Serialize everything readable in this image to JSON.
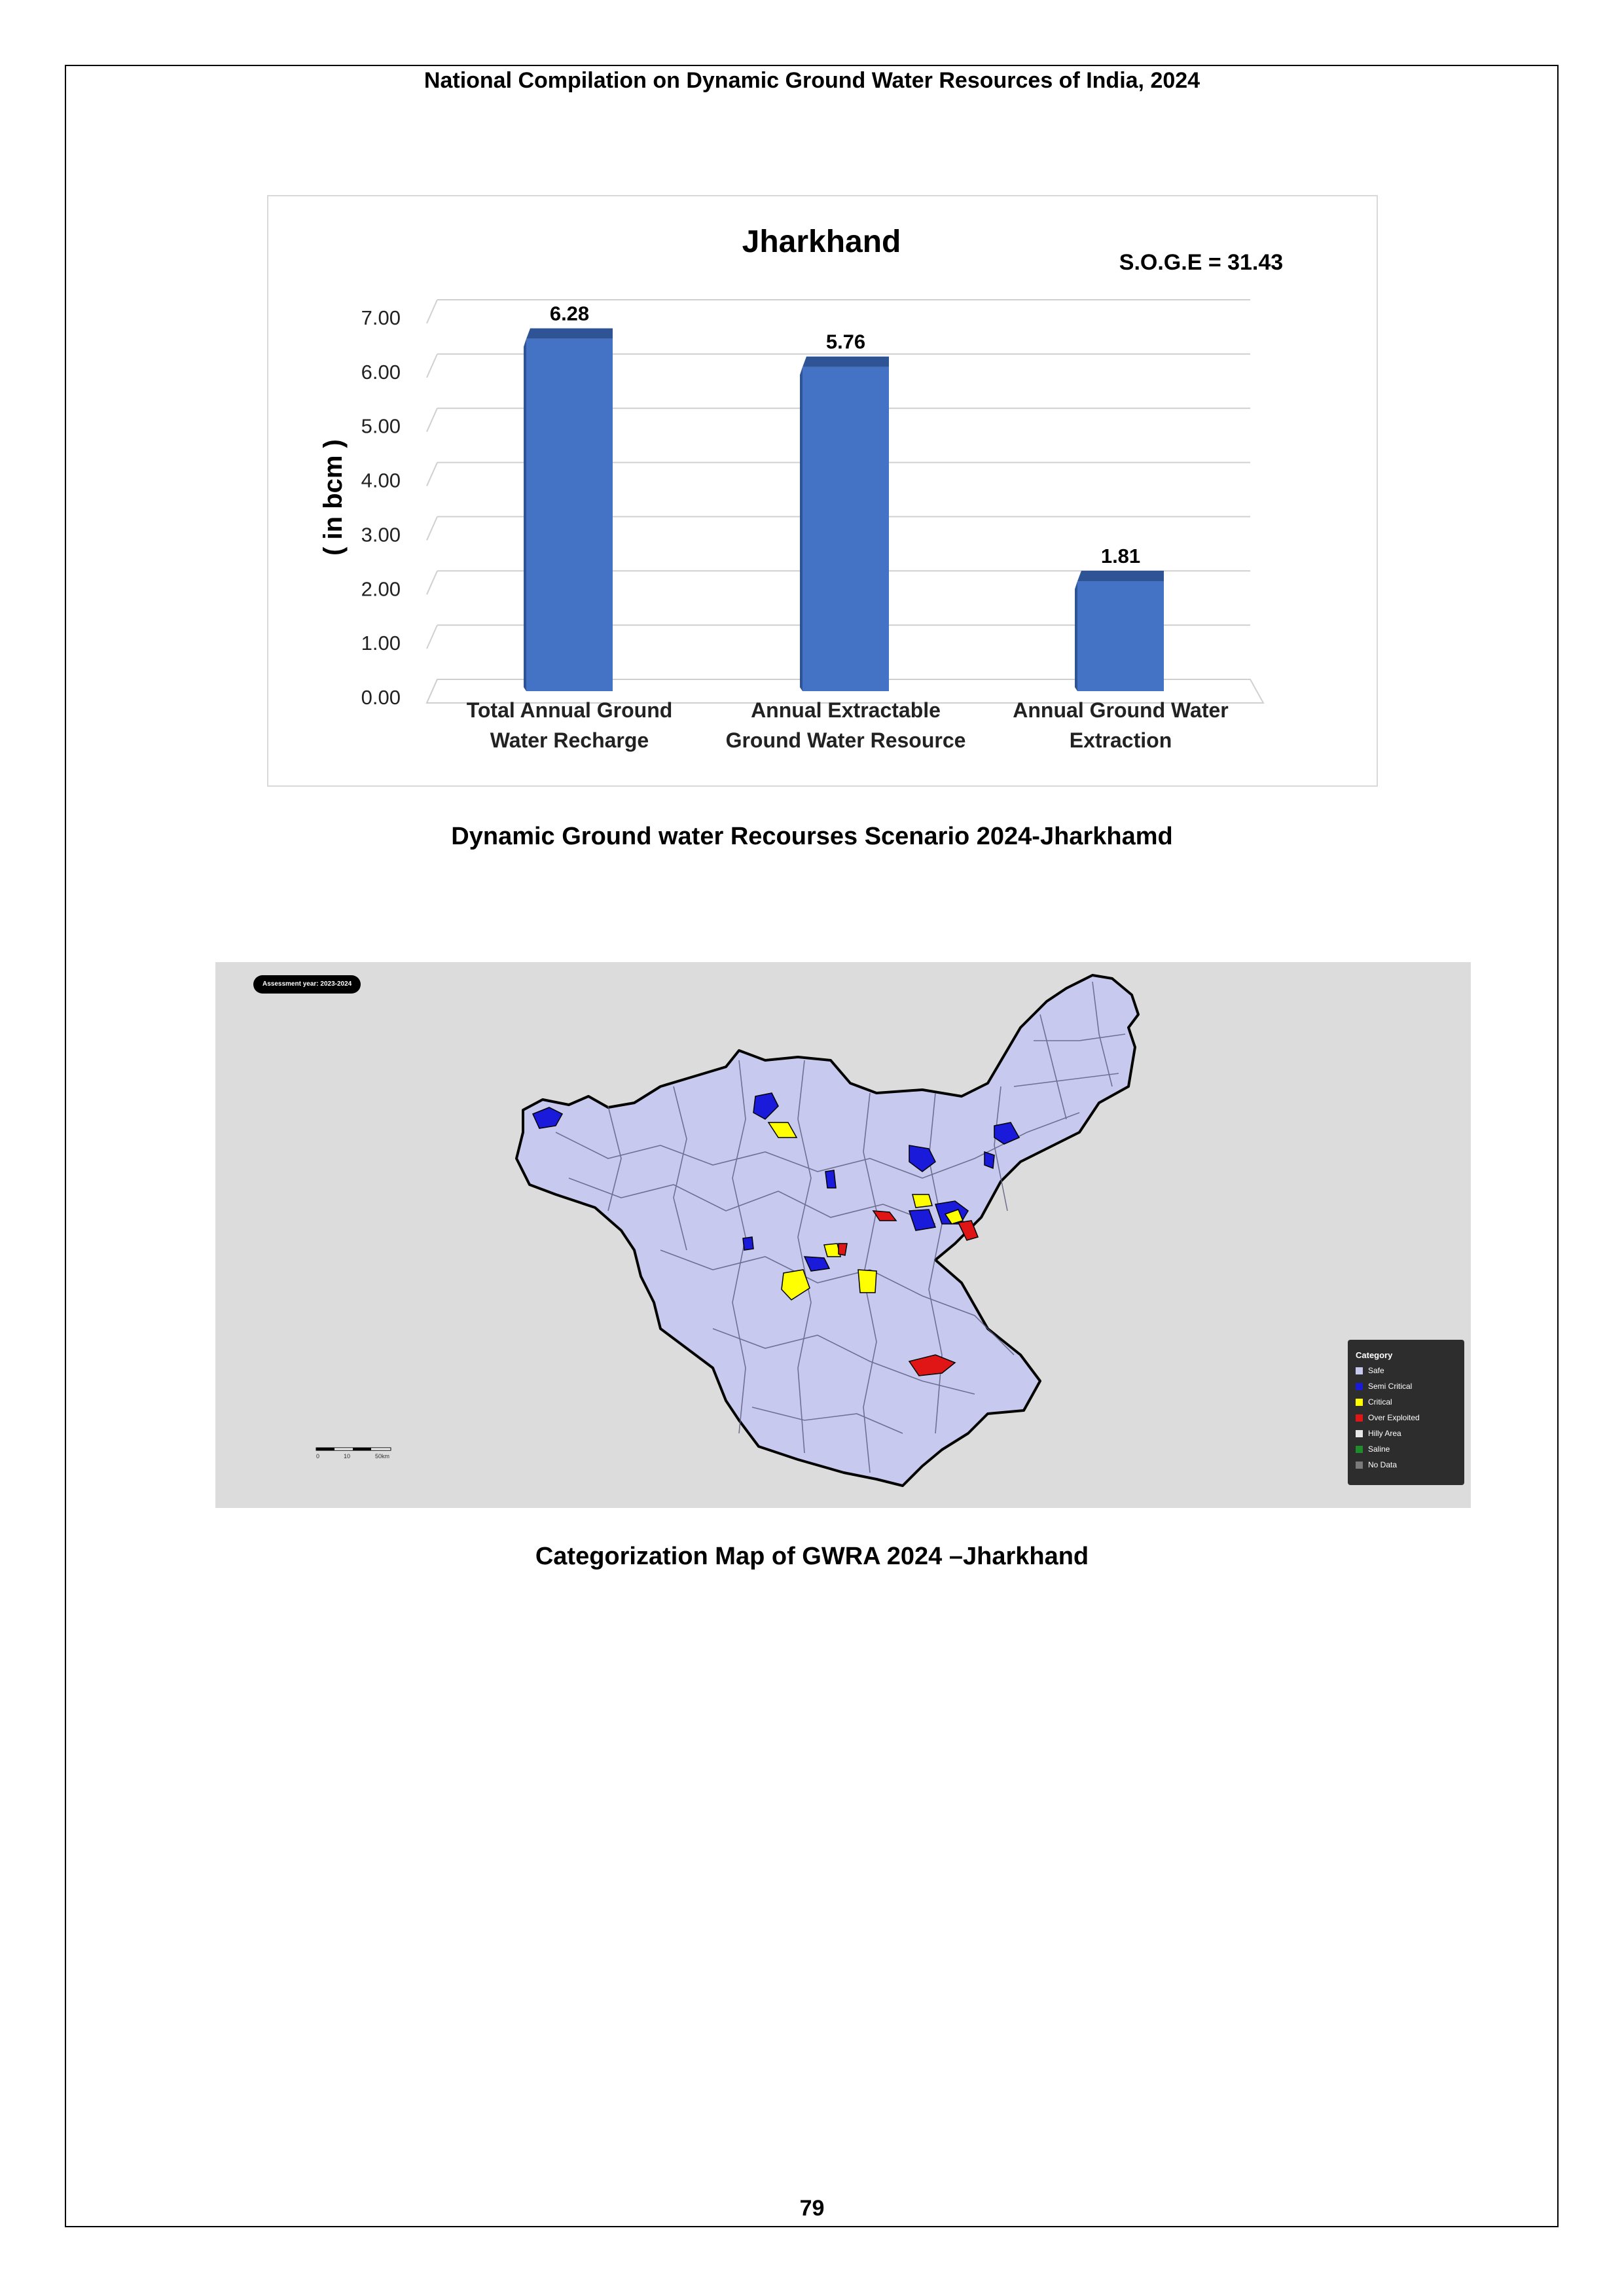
{
  "header": {
    "title": "National Compilation on Dynamic Ground Water Resources of India, 2024"
  },
  "chart_data": {
    "type": "bar",
    "title": "Jharkhand",
    "annotation": "S.O.G.E = 31.43",
    "ylabel": "( in bcm )",
    "xlabel": "",
    "ylim": [
      0,
      7
    ],
    "yticks": [
      "0.00",
      "1.00",
      "2.00",
      "3.00",
      "4.00",
      "5.00",
      "6.00",
      "7.00"
    ],
    "categories": [
      [
        "Total Annual  Ground",
        "Water Recharge"
      ],
      [
        "Annual Extractable",
        "Ground Water Resource"
      ],
      [
        "Annual Ground Water",
        "Extraction"
      ]
    ],
    "values": [
      6.28,
      5.76,
      1.81
    ],
    "value_labels": [
      "6.28",
      "5.76",
      "1.81"
    ],
    "bar_color": "#4472c4",
    "bar_top_color": "#2f5496",
    "grid": true
  },
  "chart_caption": "Dynamic Ground water Recourses Scenario 2024-Jharkhamd",
  "map": {
    "assessment_label": "Assessment year: 2023-2024",
    "legend_title": "Category",
    "legend": [
      {
        "label": "Safe",
        "color": "#c7c9ee"
      },
      {
        "label": "Semi Critical",
        "color": "#1a1adb"
      },
      {
        "label": "Critical",
        "color": "#ffff00"
      },
      {
        "label": "Over Exploited",
        "color": "#e01515"
      },
      {
        "label": "Hilly Area",
        "color": "#e8e8e8"
      },
      {
        "label": "Saline",
        "color": "#1e8c2a"
      },
      {
        "label": "No Data",
        "color": "#7a7a7a"
      }
    ],
    "scale_labels": [
      "0",
      "10",
      "50km"
    ]
  },
  "map_caption": "Categorization Map of GWRA 2024 –Jharkhand",
  "page_number": "79"
}
